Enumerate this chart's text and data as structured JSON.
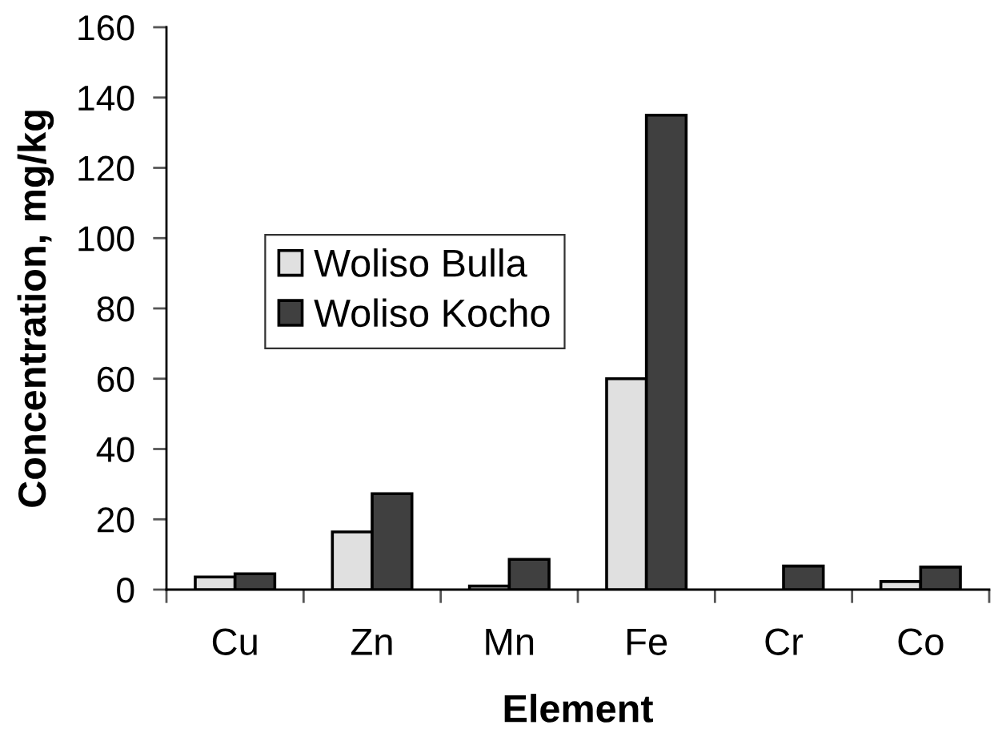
{
  "chart_data": {
    "type": "bar",
    "xlabel": "Element",
    "ylabel": "Concentration, mg/kg",
    "categories": [
      "Cu",
      "Zn",
      "Mn",
      "Fe",
      "Cr",
      "Co"
    ],
    "series": [
      {
        "name": "Woliso Bulla",
        "color": "#e0e0e0",
        "values": [
          3.6,
          16.4,
          1,
          60,
          null,
          2.3
        ]
      },
      {
        "name": "Woliso Kocho",
        "color": "#404040",
        "values": [
          4.5,
          27.3,
          8.6,
          135,
          6.7,
          6.4
        ]
      }
    ],
    "ylim": [
      0,
      160
    ],
    "yticks": [
      0,
      20,
      40,
      60,
      80,
      100,
      120,
      140,
      160
    ],
    "grid": false,
    "legend": "left"
  }
}
